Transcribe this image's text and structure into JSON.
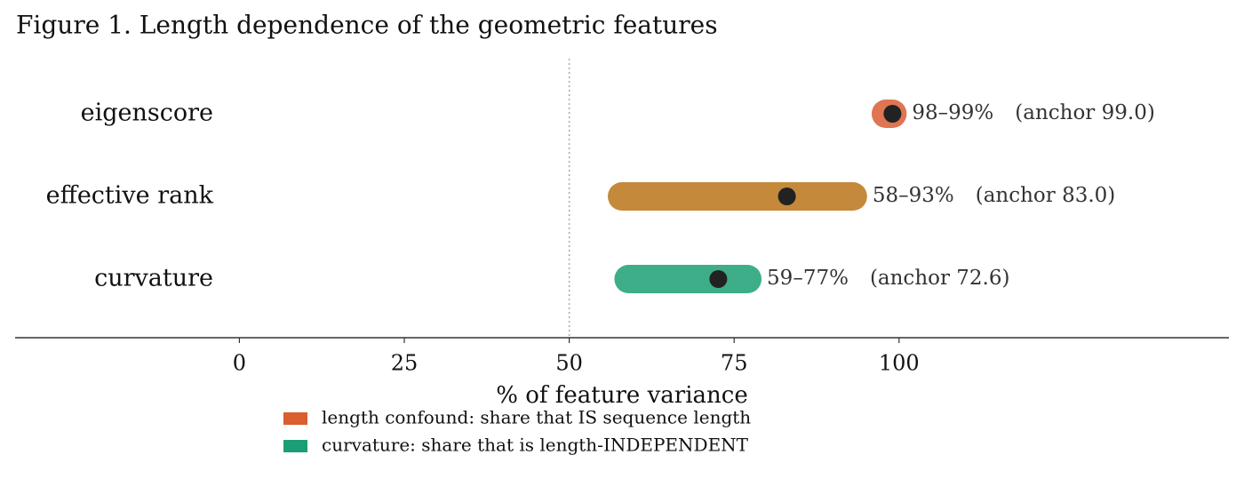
{
  "chart_data": {
    "type": "range",
    "title": "Figure 1.  Length dependence of the geometric features",
    "xlabel": "% of feature variance",
    "categories": [
      "eigenscore",
      "effective rank",
      "curvature"
    ],
    "low": [
      98,
      58,
      59
    ],
    "high": [
      99,
      93,
      77
    ],
    "anchor": [
      99.0,
      83.0,
      72.6
    ],
    "range_labels": [
      "98–99%",
      "58–93%",
      "59–77%"
    ],
    "anchor_labels": [
      "(anchor 99.0)",
      "(anchor 83.0)",
      "(anchor 72.6)"
    ],
    "colors": [
      "#e07552",
      "#c4893b",
      "#3dae89"
    ],
    "anchor_color": "#222222",
    "reference_line": 50,
    "xlim": [
      -34,
      150
    ],
    "xticks": [
      0,
      25,
      50,
      75,
      100
    ],
    "legend": [
      {
        "label": "length confound: share that IS sequence length",
        "color": "#d95f30"
      },
      {
        "label": "curvature: share that is length-INDEPENDENT",
        "color": "#1b9e77"
      }
    ]
  }
}
